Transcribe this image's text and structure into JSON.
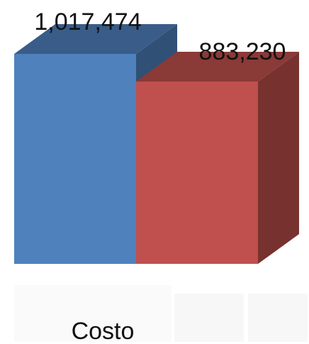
{
  "chart_data": {
    "type": "bar",
    "style": "3d-clustered-column",
    "categories": [
      "Costo"
    ],
    "series": [
      {
        "values": [
          1017474
        ],
        "label": "1,017,474",
        "color": "#4f81bd"
      },
      {
        "values": [
          883230
        ],
        "label": "883,230",
        "color": "#c0504d"
      }
    ],
    "ylim": [
      0,
      1100000
    ],
    "grid": false,
    "legend": "none"
  }
}
